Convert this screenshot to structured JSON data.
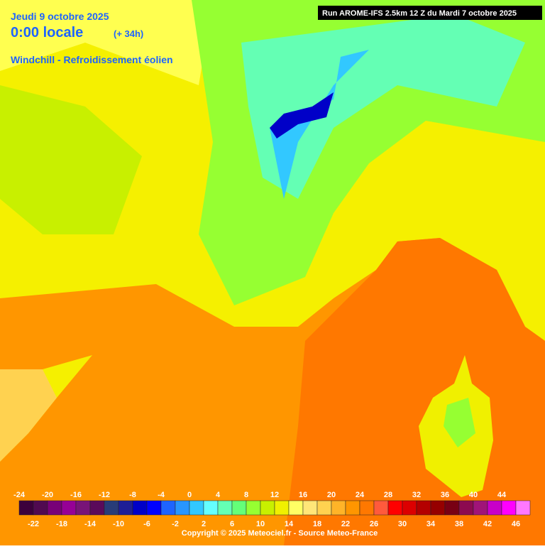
{
  "header": {
    "date": "Jeudi 9 octobre 2025",
    "time": "0:00 locale",
    "lead": "(+ 34h)",
    "parameter": "Windchill - Refroidissement éolien",
    "run": "Run AROME-IFS 2.5km 12 Z du Mardi 7 octobre 2025"
  },
  "legend": {
    "values": [
      -24,
      -22,
      -20,
      -18,
      -16,
      -14,
      -12,
      -10,
      -8,
      -6,
      -4,
      -2,
      0,
      2,
      4,
      6,
      8,
      10,
      12,
      14,
      16,
      18,
      20,
      22,
      24,
      26,
      28,
      30,
      32,
      34,
      36,
      38,
      40,
      42,
      44,
      46
    ],
    "colors": [
      "#3c003c",
      "#500a50",
      "#780078",
      "#960096",
      "#781478",
      "#5a0a5a",
      "#283c78",
      "#1e1e96",
      "#0000c8",
      "#0000ff",
      "#1e64ff",
      "#2896ff",
      "#32c8ff",
      "#64ffff",
      "#64ffb4",
      "#64ff78",
      "#96ff32",
      "#c8f000",
      "#f0f000",
      "#ffff64",
      "#ffe678",
      "#ffd250",
      "#ffb428",
      "#ff9600",
      "#ff7800",
      "#ff5a3c",
      "#ff0000",
      "#dc0000",
      "#b40000",
      "#960000",
      "#780014",
      "#8c0a50",
      "#a01478",
      "#c800c8",
      "#ff00ff",
      "#ff78ff"
    ]
  },
  "footer": {
    "copyright": "Copyright © 2025 Meteociel.fr - Source Meteo-France"
  }
}
